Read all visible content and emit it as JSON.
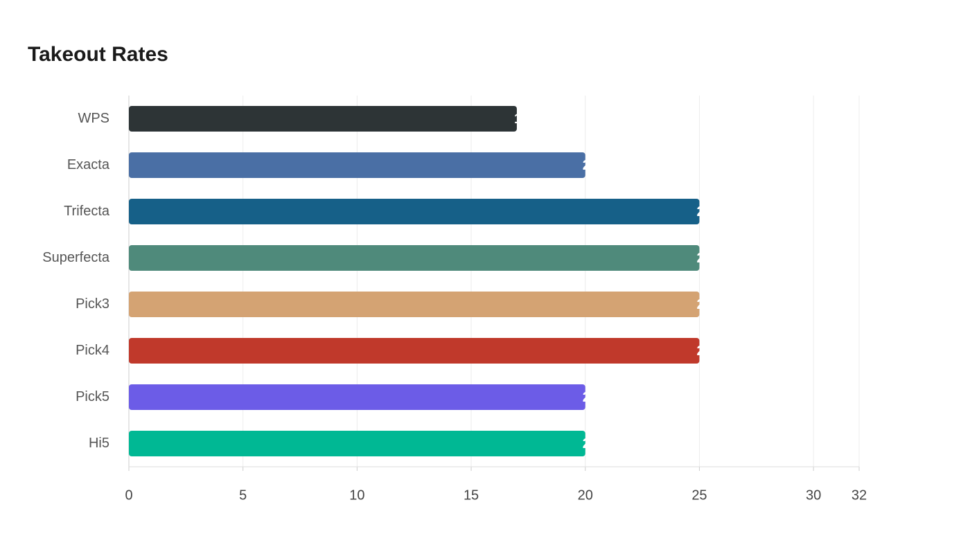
{
  "chart_data": {
    "type": "bar",
    "orientation": "horizontal",
    "title": "Takeout Rates",
    "categories": [
      "WPS",
      "Exacta",
      "Trifecta",
      "Superfecta",
      "Pick3",
      "Pick4",
      "Pick5",
      "Hi5"
    ],
    "values": [
      17,
      20,
      25,
      25,
      25,
      25,
      20,
      20
    ],
    "colors": [
      "#2d3436",
      "#4a6fa5",
      "#166088",
      "#4f8a7b",
      "#d4a373",
      "#c0392b",
      "#6c5ce7",
      "#00b894"
    ],
    "xlim": [
      0,
      32
    ],
    "xticks": [
      0,
      5,
      10,
      15,
      20,
      25,
      30,
      32
    ],
    "grid": true
  }
}
